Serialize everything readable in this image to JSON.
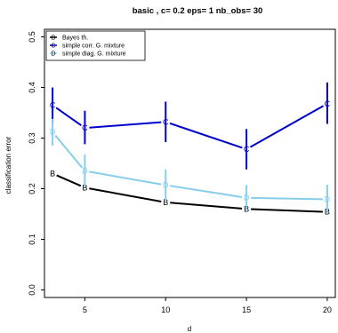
{
  "chart_data": {
    "type": "line",
    "title": "basic , c= 0.2 eps= 1 nb_obs= 30",
    "xlabel": "d",
    "ylabel": "classification error",
    "x": [
      3,
      5,
      10,
      15,
      20
    ],
    "xlim": [
      2.5,
      20.5
    ],
    "ylim": [
      -0.015,
      0.515
    ],
    "xticks": [
      5,
      10,
      15,
      20
    ],
    "yticks": [
      0.0,
      0.1,
      0.2,
      0.3,
      0.4,
      0.5
    ],
    "ytick_labels": [
      "0.0",
      "0.1",
      "0.2",
      "0.3",
      "0.4",
      "0.5"
    ],
    "legend_position": "top-left",
    "series": [
      {
        "name": "Bayes th.",
        "marker": "B",
        "color": "#000000",
        "values": [
          0.23,
          0.202,
          0.173,
          0.16,
          0.154
        ],
        "error": null
      },
      {
        "name": "simple corr. G. mixture",
        "marker": "C",
        "color": "#0000cc",
        "values": [
          0.365,
          0.32,
          0.332,
          0.278,
          0.368
        ],
        "error": [
          [
            0.33,
            0.4
          ],
          [
            0.288,
            0.354
          ],
          [
            0.292,
            0.372
          ],
          [
            0.238,
            0.318
          ],
          [
            0.328,
            0.41
          ]
        ]
      },
      {
        "name": "simple diag. G. mixture",
        "marker": "D",
        "color": "#87ceeb",
        "values": [
          0.312,
          0.235,
          0.207,
          0.182,
          0.179
        ],
        "error": [
          [
            0.285,
            0.338
          ],
          [
            0.203,
            0.268
          ],
          [
            0.176,
            0.238
          ],
          [
            0.158,
            0.207
          ],
          [
            0.15,
            0.208
          ]
        ]
      }
    ]
  }
}
